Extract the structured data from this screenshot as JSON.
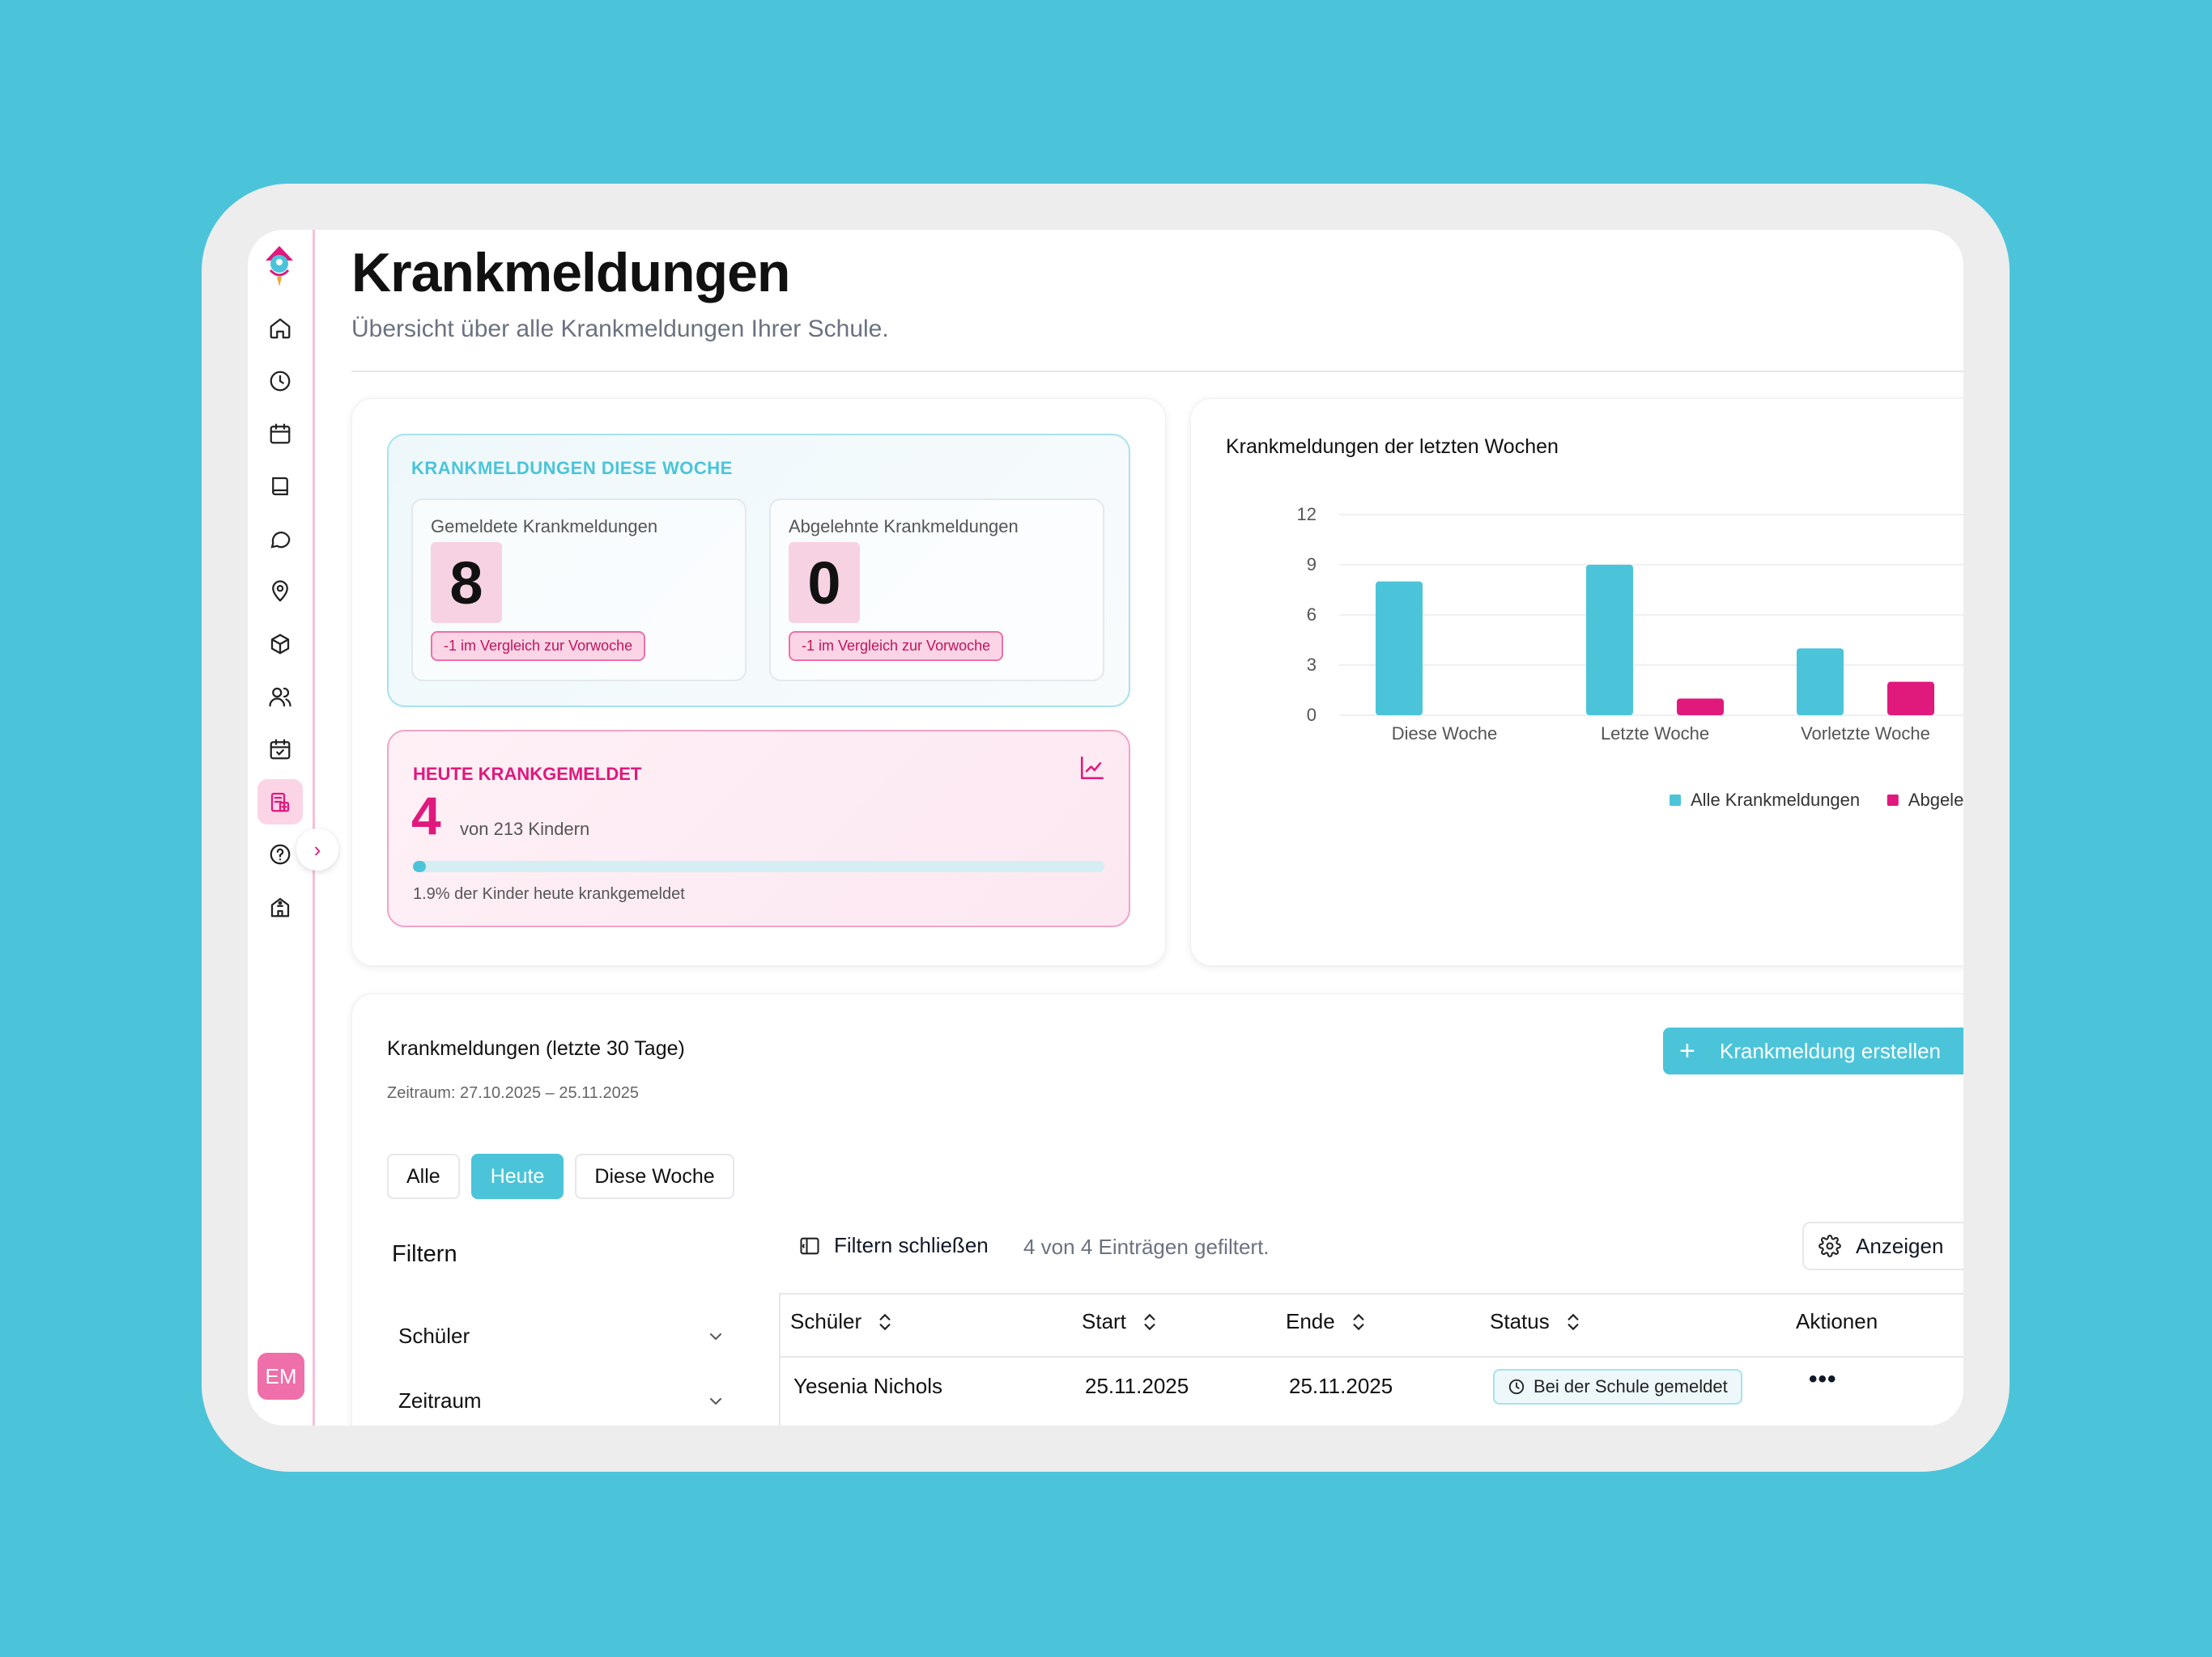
{
  "page": {
    "title": "Krankmeldungen",
    "subtitle": "Übersicht über alle Krankmeldungen Ihrer Schule."
  },
  "sidebar": {
    "items": [
      "home-icon",
      "clock-icon",
      "calendar-icon",
      "book-icon",
      "chat-icon",
      "map-pin-icon",
      "package-icon",
      "users-icon",
      "calendar-check-icon",
      "sick-report-icon",
      "help-icon",
      "school-icon"
    ],
    "active_item": "sick-report-icon",
    "avatar_initials": "EM"
  },
  "week_stats": {
    "label": "KRANKMELDUNGEN DIESE WOCHE",
    "reported": {
      "title": "Gemeldete Krankmeldungen",
      "value": "8",
      "badge": "-1 im Vergleich zur Vorwoche"
    },
    "rejected": {
      "title": "Abgelehnte Krankmeldungen",
      "value": "0",
      "badge": "-1 im Vergleich zur Vorwoche"
    }
  },
  "today": {
    "label": "HEUTE KRANKGEMELDET",
    "value": "4",
    "of_text": "von 213 Kindern",
    "progress_percent": 1.9,
    "progress_text": "1.9% der Kinder heute krankgemeldet"
  },
  "chart_data": {
    "type": "bar",
    "title": "Krankmeldungen der letzten Wochen",
    "categories": [
      "Diese Woche",
      "Letzte Woche",
      "Vorletzte Woche"
    ],
    "series": [
      {
        "name": "Alle Krankmeldungen",
        "values": [
          8,
          9,
          4
        ],
        "color": "#4BC4DA"
      },
      {
        "name": "Abgelehnt",
        "values": [
          0,
          1,
          2
        ],
        "color": "#E0197D"
      }
    ],
    "ylim": [
      0,
      12
    ],
    "yticks": [
      0,
      3,
      6,
      9,
      12
    ],
    "grid": true,
    "legend": "bottom"
  },
  "list": {
    "title": "Krankmeldungen (letzte 30 Tage)",
    "range": "Zeitraum: 27.10.2025 – 25.11.2025",
    "create_button": "Krankmeldung erstellen",
    "tabs": [
      "Alle",
      "Heute",
      "Diese Woche"
    ],
    "active_tab": "Heute",
    "filter_heading": "Filtern",
    "filters": [
      "Schüler",
      "Zeitraum"
    ],
    "close_filters": "Filtern schließen",
    "filter_count": "4 von 4 Einträgen gefiltert.",
    "show_button": "Anzeigen",
    "columns": [
      "Schüler",
      "Start",
      "Ende",
      "Status",
      "Aktionen"
    ],
    "rows": [
      {
        "student": "Yesenia Nichols",
        "start": "25.11.2025",
        "end": "25.11.2025",
        "status": "Bei der Schule gemeldet",
        "actions": "•••"
      }
    ]
  },
  "colors": {
    "background": "#4BC4DA",
    "accent": "#4BC4DA",
    "brand_pink": "#E0197D"
  }
}
